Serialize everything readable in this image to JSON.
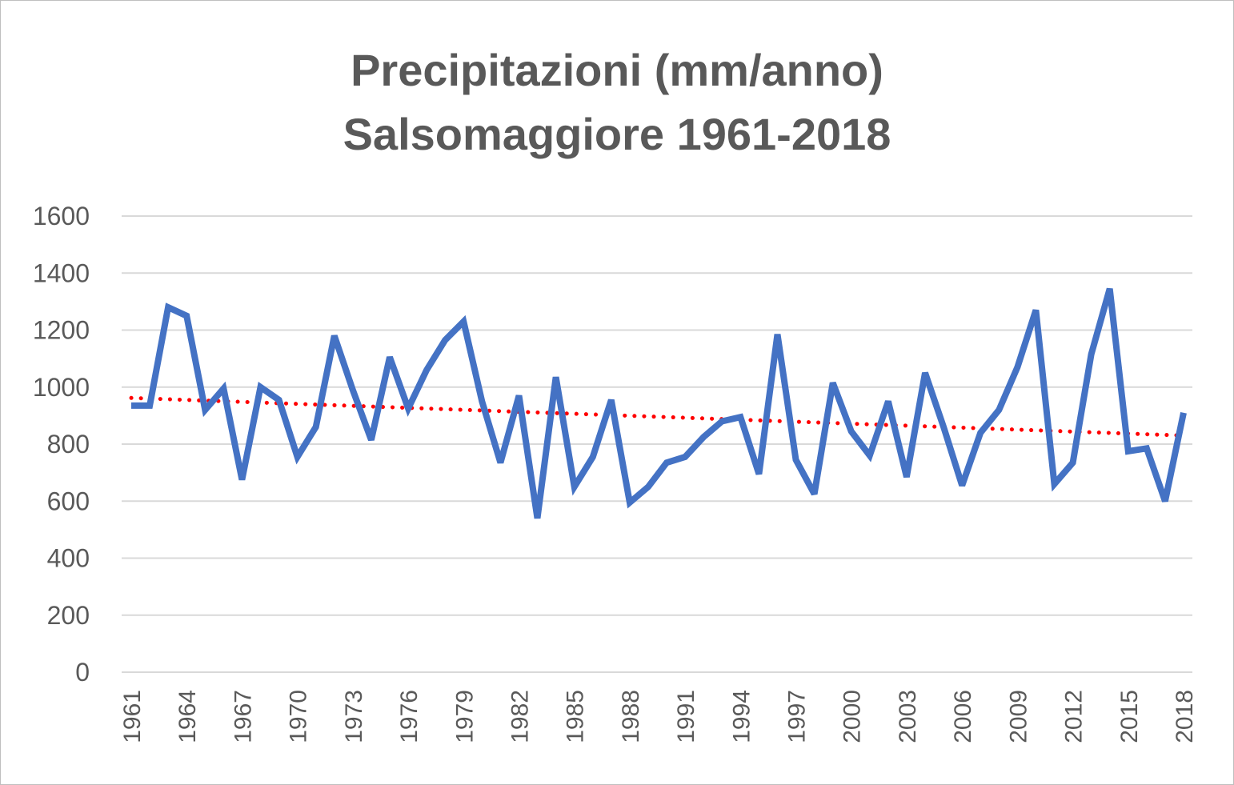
{
  "chart_data": {
    "type": "line",
    "title": "Precipitazioni (mm/anno)",
    "subtitle": "Salsomaggiore 1961-2018",
    "xlabel": "",
    "ylabel": "",
    "ylim": [
      0,
      1600
    ],
    "yticks": [
      0,
      200,
      400,
      600,
      800,
      1000,
      1200,
      1400,
      1600
    ],
    "x": [
      1961,
      1962,
      1963,
      1964,
      1965,
      1966,
      1967,
      1968,
      1969,
      1970,
      1971,
      1972,
      1973,
      1974,
      1975,
      1976,
      1977,
      1978,
      1979,
      1980,
      1981,
      1982,
      1983,
      1984,
      1985,
      1986,
      1987,
      1988,
      1989,
      1990,
      1991,
      1992,
      1993,
      1994,
      1995,
      1996,
      1997,
      1998,
      1999,
      2000,
      2001,
      2002,
      2003,
      2004,
      2005,
      2006,
      2007,
      2008,
      2009,
      2010,
      2011,
      2012,
      2013,
      2014,
      2015,
      2016,
      2017,
      2018
    ],
    "xtick_labels": [
      "1961",
      "1964",
      "1967",
      "1970",
      "1973",
      "1976",
      "1979",
      "1982",
      "1985",
      "1988",
      "1991",
      "1994",
      "1997",
      "2000",
      "2003",
      "2006",
      "2009",
      "2012",
      "2015",
      "2018"
    ],
    "grid": true,
    "legend": "none",
    "series": [
      {
        "color": "#4472C4",
        "values": [
          935,
          935,
          1280,
          1250,
          920,
          995,
          675,
          1000,
          955,
          755,
          860,
          1180,
          990,
          815,
          1105,
          925,
          1060,
          1165,
          1230,
          950,
          735,
          970,
          540,
          1035,
          650,
          755,
          955,
          595,
          650,
          735,
          755,
          825,
          880,
          895,
          695,
          1185,
          745,
          625,
          1015,
          845,
          760,
          950,
          685,
          1050,
          860,
          655,
          840,
          920,
          1070,
          1270,
          660,
          735,
          1115,
          1345,
          775,
          785,
          600,
          910
        ]
      }
    ],
    "trendline": {
      "type": "linear",
      "color": "#FF0000",
      "start": 962,
      "end": 830
    }
  }
}
